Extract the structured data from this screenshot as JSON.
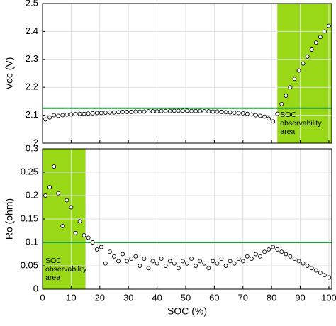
{
  "chart_data": [
    {
      "type": "scatter",
      "ylabel": "Voc (V)",
      "x": [
        1,
        2.5,
        4,
        5.5,
        7,
        8.5,
        10,
        11.5,
        13,
        14.5,
        16,
        17.5,
        19,
        20.5,
        22,
        23.5,
        25,
        26.5,
        28,
        29.5,
        31,
        32.5,
        34,
        35.5,
        37,
        38.5,
        40,
        41.5,
        43,
        44.5,
        46,
        47.5,
        49,
        50.5,
        52,
        53.5,
        55,
        56.5,
        58,
        59.5,
        61,
        62.5,
        64,
        65.5,
        67,
        68.5,
        70,
        71.5,
        73,
        74.5,
        76,
        77.5,
        79,
        80.5,
        82,
        83.5,
        85,
        86.5,
        88,
        89.5,
        91,
        92.5,
        94,
        95.5,
        97,
        98.5,
        100
      ],
      "values": [
        2.085,
        2.092,
        2.1,
        2.098,
        2.1,
        2.102,
        2.103,
        2.104,
        2.105,
        2.105,
        2.106,
        2.107,
        2.108,
        2.108,
        2.109,
        2.11,
        2.11,
        2.111,
        2.112,
        2.112,
        2.112,
        2.113,
        2.113,
        2.113,
        2.114,
        2.114,
        2.114,
        2.115,
        2.115,
        2.115,
        2.116,
        2.116,
        2.116,
        2.116,
        2.115,
        2.115,
        2.115,
        2.114,
        2.114,
        2.113,
        2.113,
        2.112,
        2.111,
        2.11,
        2.109,
        2.108,
        2.107,
        2.105,
        2.103,
        2.1,
        2.098,
        2.095,
        2.088,
        2.078,
        2.105,
        2.14,
        2.17,
        2.2,
        2.23,
        2.26,
        2.285,
        2.31,
        2.335,
        2.36,
        2.38,
        2.4,
        2.42
      ],
      "xlim": [
        0,
        101
      ],
      "xticks": [
        0,
        10,
        20,
        30,
        40,
        50,
        60,
        70,
        80,
        90,
        100
      ],
      "ylim": [
        2,
        2.5
      ],
      "yticks": [
        2,
        2.1,
        2.2,
        2.3,
        2.4,
        2.5
      ],
      "grid": true,
      "reference_line": {
        "value": 2.125,
        "color": "#1f9e3a"
      },
      "shaded_region": {
        "x": [
          82,
          101
        ],
        "color": "#99d817",
        "label": [
          "SOC",
          "observability",
          "area"
        ]
      }
    },
    {
      "type": "scatter",
      "ylabel": "Ro (ohm)",
      "xlabel": "SOC (%)",
      "x": [
        1,
        2.5,
        4,
        5.5,
        7,
        8.5,
        10,
        11.5,
        13,
        14.5,
        16,
        17.5,
        19,
        20.5,
        22,
        23.5,
        25,
        26.5,
        28,
        29.5,
        31,
        32.5,
        34,
        35.5,
        37,
        38.5,
        40,
        41.5,
        43,
        44.5,
        46,
        47.5,
        49,
        50.5,
        52,
        53.5,
        55,
        56.5,
        58,
        59.5,
        61,
        62.5,
        64,
        65.5,
        67,
        68.5,
        70,
        71.5,
        73,
        74.5,
        76,
        77.5,
        79,
        80.5,
        82,
        83.5,
        85,
        86.5,
        88,
        89.5,
        91,
        92.5,
        94,
        95.5,
        97,
        98.5,
        100
      ],
      "values": [
        0.2,
        0.218,
        0.262,
        0.205,
        0.135,
        0.19,
        0.175,
        0.12,
        0.145,
        0.115,
        0.11,
        0.1,
        0.085,
        0.09,
        0.055,
        0.08,
        0.07,
        0.06,
        0.075,
        0.06,
        0.065,
        0.07,
        0.05,
        0.065,
        0.045,
        0.06,
        0.055,
        0.065,
        0.05,
        0.06,
        0.055,
        0.045,
        0.06,
        0.055,
        0.065,
        0.05,
        0.06,
        0.055,
        0.045,
        0.06,
        0.055,
        0.065,
        0.05,
        0.06,
        0.055,
        0.065,
        0.06,
        0.07,
        0.065,
        0.075,
        0.07,
        0.08,
        0.085,
        0.09,
        0.085,
        0.08,
        0.075,
        0.07,
        0.065,
        0.06,
        0.055,
        0.05,
        0.045,
        0.04,
        0.035,
        0.03,
        0.025
      ],
      "xlim": [
        0,
        101
      ],
      "xticks": [
        0,
        10,
        20,
        30,
        40,
        50,
        60,
        70,
        80,
        90,
        100
      ],
      "ylim": [
        0,
        0.3
      ],
      "yticks": [
        0,
        0.05,
        0.1,
        0.15,
        0.2,
        0.25,
        0.3
      ],
      "grid": true,
      "reference_line": {
        "value": 0.1,
        "color": "#1f9e3a"
      },
      "shaded_region": {
        "x": [
          0,
          15
        ],
        "color": "#99d817",
        "label": [
          "SOC",
          "observability",
          "area"
        ]
      }
    }
  ]
}
